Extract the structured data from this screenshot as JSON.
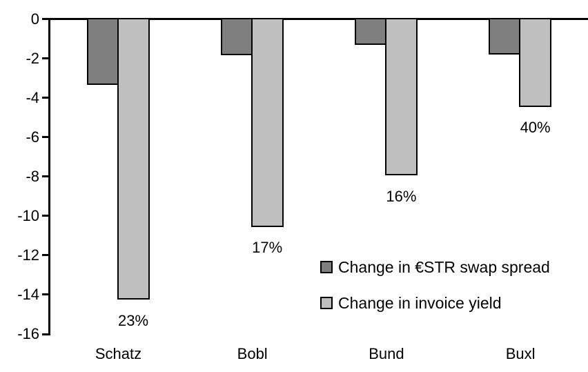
{
  "chart_data": {
    "type": "bar",
    "title": "",
    "categories": [
      "Schatz",
      "Bobl",
      "Bund",
      "Buxl"
    ],
    "series": [
      {
        "name": "Change in €STR swap spread",
        "color": "#7f7f7f",
        "border_color": "#000000",
        "values": [
          -3.3,
          -1.8,
          -1.25,
          -1.75
        ],
        "data_labels": []
      },
      {
        "name": "Change in invoice yield",
        "color": "#bfbfbf",
        "border_color": "#000000",
        "values": [
          -14.2,
          -10.5,
          -7.9,
          -4.4
        ],
        "data_labels": [
          "23%",
          "17%",
          "16%",
          "40%"
        ]
      }
    ],
    "y_axis": {
      "min": -16,
      "max": 0,
      "tick_step": 2,
      "tick_labels": [
        "0",
        "-2",
        "-4",
        "-6",
        "-8",
        "-10",
        "-12",
        "-14",
        "-16"
      ]
    },
    "legend": {
      "position": "inside-right-bottom"
    },
    "grid": false,
    "background": "#ffffff",
    "text_color": "#000000"
  }
}
